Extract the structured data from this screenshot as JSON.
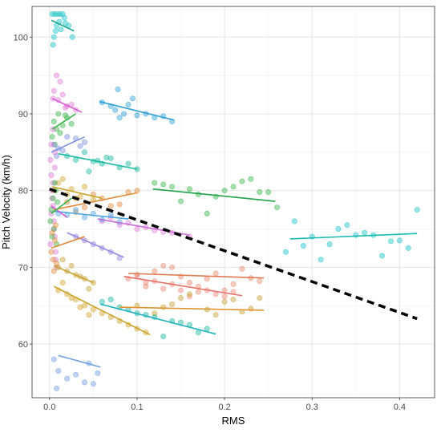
{
  "chart_data": {
    "type": "scatter",
    "title": "",
    "xlabel": "RMS",
    "ylabel": "Pitch Velocity (km/h)",
    "xlim": [
      -0.02,
      0.44
    ],
    "ylim": [
      53,
      104
    ],
    "xticks": [
      0.0,
      0.1,
      0.2,
      0.3,
      0.4
    ],
    "xtick_labels": [
      "0.0",
      "0.1",
      "0.2",
      "0.3",
      "0.4"
    ],
    "yticks": [
      60,
      70,
      80,
      90,
      100
    ],
    "ytick_labels": [
      "60",
      "70",
      "80",
      "90",
      "100"
    ],
    "grid": true,
    "legend": "none",
    "overall_trend": {
      "style": "dashed",
      "color": "#000000",
      "x": [
        0.0,
        0.42
      ],
      "y": [
        80.2,
        63.3
      ]
    },
    "series": [
      {
        "color": "#19c3c8",
        "x": [
          0.003,
          0.006,
          0.009,
          0.012,
          0.015,
          0.018,
          0.022,
          0.004,
          0.008,
          0.013,
          0.017,
          0.005,
          0.011,
          0.007,
          0.026
        ],
        "y": [
          103,
          103,
          103,
          103,
          103,
          101.8,
          101.5,
          99,
          101.5,
          101,
          102.5,
          100,
          102,
          100.8,
          100
        ],
        "line": [
          [
            0.002,
            102.2
          ],
          [
            0.028,
            100.8
          ]
        ],
        "line_color": "#1ca88a"
      },
      {
        "color": "#2c9fd6",
        "x": [
          0.06,
          0.07,
          0.075,
          0.08,
          0.085,
          0.09,
          0.1,
          0.11,
          0.12,
          0.13,
          0.14,
          0.078,
          0.095
        ],
        "y": [
          91.5,
          91,
          90.5,
          89.5,
          90,
          91.2,
          89.8,
          90,
          89.5,
          89.7,
          89,
          93.2,
          92
        ],
        "line": [
          [
            0.057,
            91.6
          ],
          [
            0.142,
            89.2
          ]
        ],
        "line_color": "#2c9fd6"
      },
      {
        "color": "#3ab54a",
        "x": [
          0.005,
          0.01,
          0.015,
          0.02,
          0.003,
          0.008,
          0.012,
          0.018,
          0.025,
          0.006
        ],
        "y": [
          89,
          90,
          88.5,
          89.5,
          87,
          88,
          87.5,
          89.8,
          88.7,
          86
        ],
        "line": [
          [
            0.003,
            88
          ],
          [
            0.03,
            90
          ]
        ],
        "line_color": "#3ab54a"
      },
      {
        "color": "#e07bd8",
        "x": [
          0.005,
          0.01,
          0.015,
          0.02,
          0.025,
          0.008,
          0.012,
          0.018,
          0.03,
          0.004
        ],
        "y": [
          93,
          91.8,
          92.5,
          91,
          91.2,
          95,
          94.2,
          90.8,
          90.5,
          92
        ],
        "line": [
          [
            0.003,
            92
          ],
          [
            0.037,
            90.2
          ]
        ],
        "line_color": "#d45bd0"
      },
      {
        "color": "#7b8fe0",
        "x": [
          0.005,
          0.01,
          0.02,
          0.03,
          0.035,
          0.04,
          0.008,
          0.015
        ],
        "y": [
          86,
          85.5,
          87,
          86.8,
          85.8,
          86.3,
          84.5,
          85.2
        ],
        "line": [
          [
            0.002,
            85
          ],
          [
            0.04,
            87
          ]
        ],
        "line_color": "#7b8fe0"
      },
      {
        "color": "#19b8a0",
        "x": [
          0.02,
          0.03,
          0.04,
          0.05,
          0.06,
          0.07,
          0.08,
          0.09,
          0.1,
          0.045,
          0.055,
          0.065
        ],
        "y": [
          84.5,
          84,
          85,
          83.8,
          83.5,
          84.2,
          83,
          83.5,
          82.8,
          82.5,
          83.9,
          84.3
        ],
        "line": [
          [
            0.01,
            84.8
          ],
          [
            0.1,
            82.8
          ]
        ],
        "line_color": "#19b8a0"
      },
      {
        "color": "#3ab54a",
        "x": [
          0.12,
          0.14,
          0.16,
          0.18,
          0.2,
          0.22,
          0.24,
          0.26,
          0.13,
          0.15,
          0.17,
          0.19,
          0.21,
          0.23,
          0.25
        ],
        "y": [
          81,
          80.5,
          80.2,
          77,
          80,
          81.2,
          79.8,
          77.8,
          80.8,
          78.6,
          79.5,
          79.2,
          80.5,
          81.5,
          79.8
        ],
        "line": [
          [
            0.118,
            80.2
          ],
          [
            0.258,
            78.6
          ]
        ],
        "line_color": "#21a34a"
      },
      {
        "color": "#19c3c8",
        "x": [
          0.27,
          0.28,
          0.3,
          0.31,
          0.32,
          0.33,
          0.34,
          0.35,
          0.36,
          0.38,
          0.4,
          0.42,
          0.29,
          0.37,
          0.39,
          0.41
        ],
        "y": [
          72,
          76,
          74,
          71,
          73,
          75,
          75.5,
          74.2,
          74.5,
          71.5,
          73.5,
          77.5,
          72.8,
          74.2,
          73.4,
          72.5
        ],
        "line": [
          [
            0.275,
            73.7
          ],
          [
            0.42,
            74.4
          ]
        ],
        "line_color": "#19b8b0"
      },
      {
        "color": "#e38a3a",
        "x": [
          0.02,
          0.04,
          0.06,
          0.08,
          0.1,
          0.03,
          0.05,
          0.07,
          0.09
        ],
        "y": [
          78.5,
          77.8,
          79,
          78.2,
          80,
          77.2,
          79.5,
          78,
          79.8
        ],
        "line": [
          [
            0.005,
            77.5
          ],
          [
            0.1,
            79.7
          ]
        ],
        "line_color": "#e38a3a"
      },
      {
        "color": "#e07bd8",
        "x": [
          0.06,
          0.08,
          0.1,
          0.12,
          0.14,
          0.16,
          0.07,
          0.09,
          0.11,
          0.13
        ],
        "y": [
          76,
          75.5,
          75,
          74.8,
          74.5,
          74,
          76.5,
          75.8,
          75.2,
          74.6
        ],
        "line": [
          [
            0.055,
            76.3
          ],
          [
            0.16,
            74.2
          ]
        ],
        "line_color": "#c86ad8"
      },
      {
        "color": "#d4a32c",
        "x": [
          0.005,
          0.01,
          0.02,
          0.03,
          0.04,
          0.05,
          0.015,
          0.025,
          0.035
        ],
        "y": [
          80,
          81,
          79.5,
          79,
          80.5,
          78.8,
          81.5,
          80.2,
          79.2
        ],
        "line": [
          [
            0.003,
            80.5
          ],
          [
            0.06,
            79
          ]
        ],
        "line_color": "#c9a227"
      },
      {
        "color": "#4fa3e0",
        "x": [
          0.01,
          0.02,
          0.03,
          0.04,
          0.05,
          0.06,
          0.07,
          0.08
        ],
        "y": [
          77,
          76.8,
          77.5,
          76.5,
          77,
          76.2,
          76.8,
          75.9
        ],
        "line": [
          [
            0.005,
            77.3
          ],
          [
            0.09,
            76.3
          ]
        ],
        "line_color": "#4fa3e0"
      },
      {
        "color": "#9a86e0",
        "x": [
          0.03,
          0.04,
          0.05,
          0.06,
          0.07,
          0.08
        ],
        "y": [
          74,
          73.5,
          73,
          72.5,
          72,
          71.2
        ],
        "line": [
          [
            0.02,
            74.5
          ],
          [
            0.085,
            71.3
          ]
        ],
        "line_color": "#9a86e0"
      },
      {
        "color": "#e8886a",
        "x": [
          0.1,
          0.12,
          0.14,
          0.16,
          0.18,
          0.2,
          0.22,
          0.24,
          0.11,
          0.13,
          0.15,
          0.17,
          0.19,
          0.21,
          0.23
        ],
        "y": [
          69,
          69.5,
          70,
          68,
          68.5,
          67,
          69.8,
          68.2,
          67.5,
          70.2,
          68.8,
          66.8,
          69.2,
          67.8,
          68.6
        ],
        "line": [
          [
            0.09,
            69.2
          ],
          [
            0.245,
            68.6
          ]
        ],
        "line_color": "#e27a52"
      },
      {
        "color": "#f08a7a",
        "x": [
          0.09,
          0.11,
          0.13,
          0.15,
          0.17,
          0.19,
          0.21,
          0.1,
          0.12,
          0.14,
          0.16,
          0.18,
          0.2
        ],
        "y": [
          68.5,
          68,
          67.2,
          67,
          67.5,
          66.5,
          66.8,
          69,
          68.2,
          67.8,
          66.2,
          67,
          66.2
        ],
        "line": [
          [
            0.085,
            68.8
          ],
          [
            0.22,
            66.3
          ]
        ],
        "line_color": "#e87068"
      },
      {
        "color": "#c8a232",
        "x": [
          0.1,
          0.13,
          0.15,
          0.18,
          0.2,
          0.22,
          0.24,
          0.12,
          0.14,
          0.16,
          0.19,
          0.21,
          0.23
        ],
        "y": [
          65,
          64.8,
          66,
          64.5,
          65.5,
          64.2,
          66,
          64,
          65.2,
          66.5,
          63.8,
          65.8,
          64.6
        ],
        "line": [
          [
            0.08,
            64.8
          ],
          [
            0.245,
            64.4
          ]
        ],
        "line_color": "#e09530"
      },
      {
        "color": "#19b8a0",
        "x": [
          0.06,
          0.08,
          0.1,
          0.12,
          0.14,
          0.16,
          0.18,
          0.07,
          0.09,
          0.11,
          0.13,
          0.15,
          0.17
        ],
        "y": [
          65.5,
          64.8,
          64,
          63.5,
          63,
          62.5,
          62,
          65.8,
          64.5,
          63.8,
          61,
          62.8,
          61.5
        ],
        "line": [
          [
            0.058,
            65.2
          ],
          [
            0.19,
            61.3
          ]
        ],
        "line_color": "#1fb0c0"
      },
      {
        "color": "#d4a32c",
        "x": [
          0.01,
          0.02,
          0.03,
          0.04,
          0.05,
          0.06,
          0.07,
          0.08,
          0.09,
          0.1,
          0.11,
          0.015,
          0.025,
          0.035,
          0.045
        ],
        "y": [
          67,
          66.5,
          65.8,
          65,
          64.5,
          64,
          63.5,
          63,
          62.5,
          62,
          61.5,
          68,
          66,
          64.8,
          63.8
        ],
        "line": [
          [
            0.005,
            67.5
          ],
          [
            0.115,
            61.2
          ]
        ],
        "line_color": "#c9a227"
      },
      {
        "color": "#6e9ee0",
        "x": [
          0.005,
          0.01,
          0.02,
          0.03,
          0.04,
          0.05,
          0.055,
          0.008,
          0.045
        ],
        "y": [
          58,
          56.5,
          55.5,
          56,
          55,
          54.8,
          56.2,
          54.2,
          57.5
        ],
        "line": [
          [
            0.01,
            58.5
          ],
          [
            0.058,
            57
          ]
        ],
        "line_color": "#6e9ee0"
      },
      {
        "color": "#e07bd8",
        "x": [
          0.001,
          0.002,
          0.003,
          0.004,
          0.005,
          0.006,
          0.007,
          0.008,
          0.002,
          0.004,
          0.006,
          0.003,
          0.005,
          0.001,
          0.007,
          0.002,
          0.004,
          0.006
        ],
        "y": [
          84,
          82,
          80,
          78,
          76,
          74,
          72,
          70,
          86,
          88,
          83,
          79,
          75,
          73,
          71,
          77,
          81,
          85
        ],
        "line": [
          [
            0.002,
            78
          ],
          [
            0.02,
            76.5
          ]
        ],
        "line_color": "#d45bd0"
      },
      {
        "color": "#3ab54a",
        "x": [
          0.001,
          0.002,
          0.004,
          0.005,
          0.007,
          0.009,
          0.003,
          0.006,
          0.008
        ],
        "y": [
          76,
          77.5,
          79,
          75,
          80,
          78.5,
          74,
          81,
          73
        ],
        "line": [
          [
            0.002,
            77
          ],
          [
            0.025,
            79
          ]
        ],
        "line_color": "#3ab54a"
      },
      {
        "color": "#e38a3a",
        "x": [
          0.002,
          0.004,
          0.006,
          0.008,
          0.003,
          0.005,
          0.007
        ],
        "y": [
          72,
          71,
          73.5,
          70.5,
          74.5,
          69.5,
          75.5
        ],
        "line": [
          [
            0.002,
            72.5
          ],
          [
            0.04,
            74
          ]
        ],
        "line_color": "#e38a3a"
      },
      {
        "color": "#c8a232",
        "x": [
          0.01,
          0.02,
          0.03,
          0.04,
          0.05,
          0.015,
          0.025,
          0.035,
          0.045
        ],
        "y": [
          70,
          69.5,
          69,
          68.5,
          68,
          71,
          70.2,
          68.8,
          67.2
        ],
        "line": [
          [
            0.005,
            70.2
          ],
          [
            0.05,
            68
          ]
        ],
        "line_color": "#c8a232"
      }
    ]
  }
}
